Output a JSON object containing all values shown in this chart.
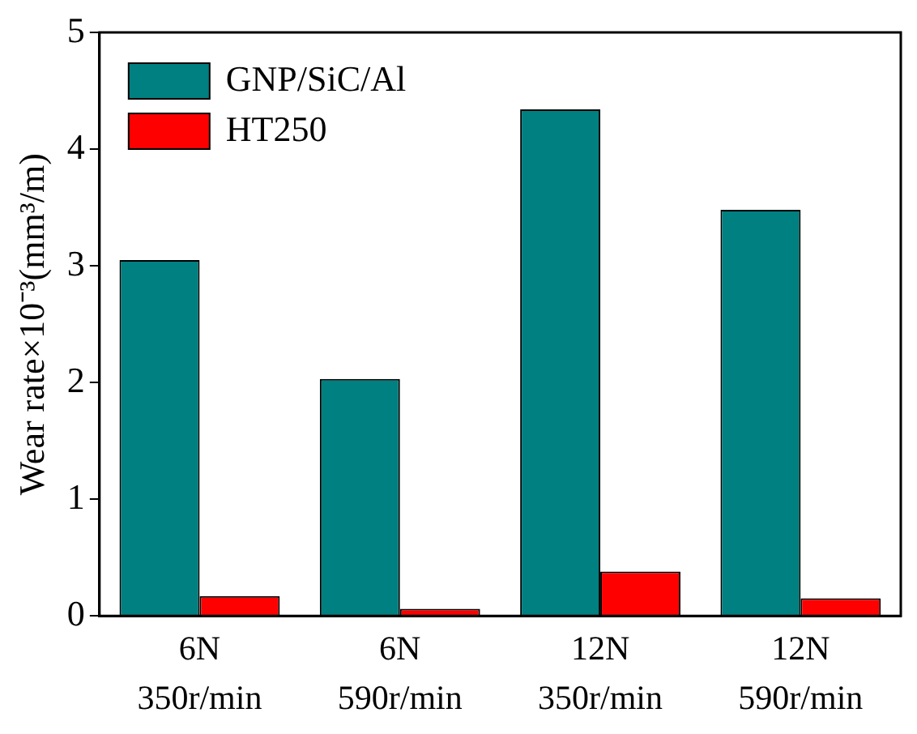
{
  "chart_data": {
    "type": "bar",
    "ylabel": "Wear rate×10⁻³(mm³/m)",
    "categories": [
      "6N 350r/min",
      "6N 590r/min",
      "12N 350r/min",
      "12N 590r/min"
    ],
    "series": [
      {
        "name": "GNP/SiC/Al",
        "color": "#008080",
        "values": [
          3.05,
          2.03,
          4.34,
          3.48
        ]
      },
      {
        "name": "HT250",
        "color": "#ff0000",
        "values": [
          0.17,
          0.06,
          0.38,
          0.15
        ]
      }
    ],
    "ylim": [
      0,
      5
    ],
    "yticks": [
      0,
      1,
      2,
      3,
      4,
      5
    ],
    "grid": false,
    "legend": "top left"
  }
}
